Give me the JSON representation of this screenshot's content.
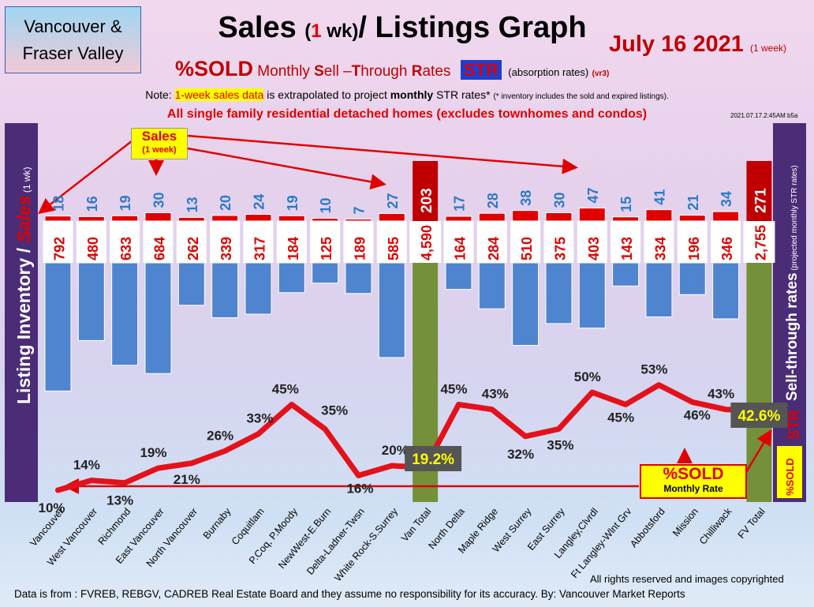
{
  "header": {
    "region_line1": "Vancouver &",
    "region_line2": "Fraser Valley",
    "title_part1": "Sales ",
    "title_paren_open": "(",
    "title_num": "1",
    "title_paren_rest": " wk)",
    "title_part2": "/ Listings Graph",
    "date": "July 16  2021",
    "date_note": "(1 week)",
    "sub_sold": "%SOLD",
    "sub_monthly": " Monthly ",
    "sub_S": "S",
    "sub_ell": "ell",
    "sub_dash": " –",
    "sub_T": "T",
    "sub_hrough": "hrough ",
    "sub_R": "R",
    "sub_ates": "ates",
    "sub_str": "STR",
    "sub_absorption": "(absorption rates)",
    "sub_ver": "(vr3)",
    "note_prefix": "Note: ",
    "note_highlight": "1-week sales data",
    "note_mid1": " is extrapolated to project ",
    "note_bold": "monthly",
    "note_mid2": " STR rates* ",
    "note_small": "(* inventory includes the sold and expired listings).",
    "scope": "All single family residential detached homes (excludes townhomes and condos)",
    "stamp": "2021.07.17.2:45AM b5a"
  },
  "side_labels": {
    "left_prefix": "Listing Inventory /",
    "left_sales": " Sales",
    "left_suffix": " (1 wk)",
    "right_main": "Sell-through rates",
    "right_small": " (projected monthly STR rates)",
    "right_sold": "%SOLD",
    "right_str": "STR"
  },
  "callouts": {
    "sales_line1": "Sales",
    "sales_line2": "(1 week)",
    "sold_line1": "%SOLD",
    "sold_line2": "Monthly Rate"
  },
  "footer": {
    "copyright": "All rights reserved and  images copyrighted",
    "source": "Data is from : FVREB, REBGV, CADREB Real Estate Board and they assume no responsibility for its accuracy. By: Vancouver Market Reports"
  },
  "chart_data": {
    "type": "bar",
    "categories": [
      "Vancouver",
      "West Vancouver",
      "Richmond",
      "East Vancouver",
      "North Vancouver",
      "Burnaby",
      "Coquitlam",
      "P.Coq, P.Moody",
      "NewWest-E.Burn",
      "Delta-Ladner-Twsn",
      "White Rock-S.Surrey",
      "Van Total",
      "North Delta",
      "Maple Ridge",
      "West Surrey",
      "East Surrey",
      "Langley,Clvrdl",
      "Ft Langley-Wlnt Grv",
      "Abbotsford",
      "Mission",
      "Chilliwack",
      "FV Total"
    ],
    "series": [
      {
        "name": "Sales",
        "values": [
          18,
          16,
          19,
          30,
          13,
          20,
          24,
          19,
          10,
          7,
          27,
          203,
          17,
          28,
          38,
          30,
          47,
          15,
          41,
          21,
          34,
          271
        ]
      },
      {
        "name": "Listing Inventory",
        "values": [
          792,
          480,
          633,
          684,
          262,
          339,
          317,
          184,
          125,
          189,
          585,
          4590,
          164,
          284,
          510,
          375,
          403,
          143,
          334,
          196,
          346,
          2755
        ]
      },
      {
        "name": "%SOLD Monthly Rate",
        "values": [
          10,
          14,
          13,
          19,
          21,
          26,
          33,
          45,
          35,
          16,
          20,
          19.2,
          45,
          43,
          32,
          35,
          50,
          45,
          53,
          46,
          43,
          42.6
        ]
      }
    ],
    "inventory_labels": [
      "792",
      "480",
      "633",
      "684",
      "262",
      "339",
      "317",
      "184",
      "125",
      "189",
      "585",
      "4,590",
      "164",
      "284",
      "510",
      "375",
      "403",
      "143",
      "334",
      "196",
      "346",
      "2,755"
    ],
    "percent_labels": [
      "10%",
      "14%",
      "13%",
      "19%",
      "21%",
      "26%",
      "33%",
      "45%",
      "35%",
      "16%",
      "20%",
      "19.2%",
      "45%",
      "43%",
      "32%",
      "35%",
      "50%",
      "45%",
      "53%",
      "46%",
      "43%",
      "42.6%"
    ],
    "colors": {
      "sales": "#e00000",
      "inventory": "#4f84cf",
      "totals": "#74903a",
      "line": "#e3121a",
      "sales_label": "#2c7ac8",
      "inventory_label": "#e00000",
      "percent": "#222222",
      "total_percent": "#ffff00"
    }
  }
}
